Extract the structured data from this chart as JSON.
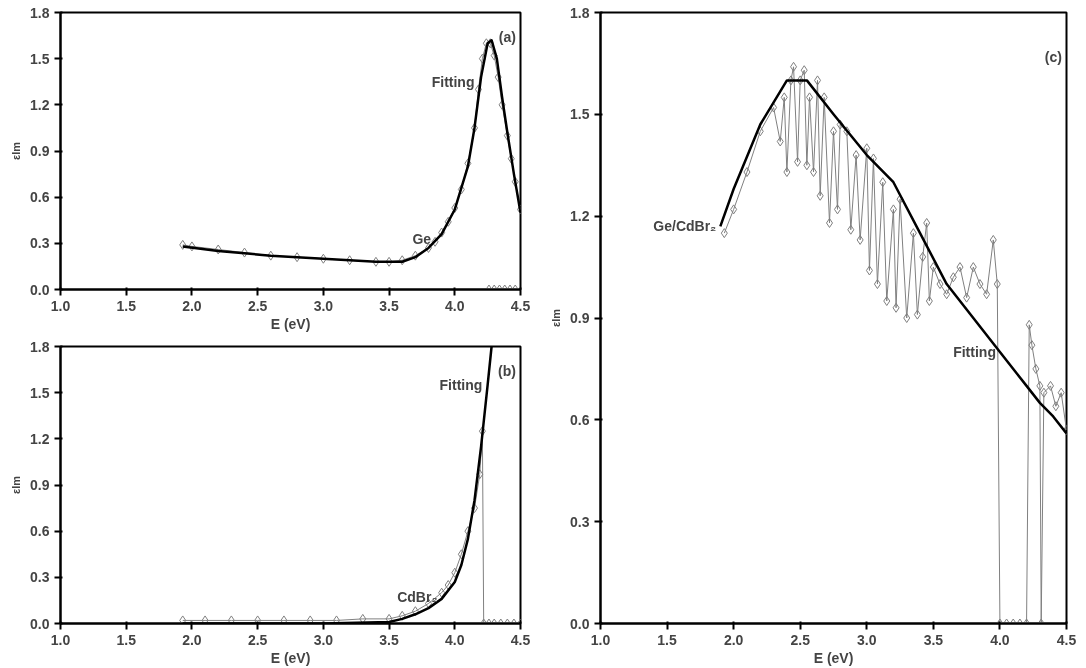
{
  "chart_data": [
    {
      "type": "line",
      "xlabel": "E (eV)",
      "ylabel": "εIm",
      "xlim": [
        1.0,
        4.5
      ],
      "ylim": [
        0.0,
        1.8
      ],
      "xticks": [
        {
          "value": 1.0,
          "label": "1.0"
        },
        {
          "value": 1.5,
          "label": "1.5"
        },
        {
          "value": 2.0,
          "label": "2.0"
        },
        {
          "value": 2.5,
          "label": "2.5"
        },
        {
          "value": 3.0,
          "label": "3.0"
        },
        {
          "value": 3.5,
          "label": "3.5"
        },
        {
          "value": 4.0,
          "label": "4.0"
        },
        {
          "value": 4.5,
          "label": "4.5"
        }
      ],
      "yticks": [
        {
          "value": 0.0,
          "label": "0.0"
        },
        {
          "value": 0.3,
          "label": "0.3"
        },
        {
          "value": 0.6,
          "label": "0.6"
        },
        {
          "value": 0.9,
          "label": "0.9"
        },
        {
          "value": 1.2,
          "label": "1.2"
        },
        {
          "value": 1.5,
          "label": "1.5"
        },
        {
          "value": 1.8,
          "label": "1.8"
        }
      ],
      "grid": false,
      "series": [
        {
          "marker": "diamond",
          "color": "#808080",
          "x": [
            1.93,
            2.0,
            2.2,
            2.4,
            2.6,
            2.8,
            3.0,
            3.2,
            3.4,
            3.5,
            3.6,
            3.7,
            3.8,
            3.85,
            3.9,
            3.95,
            4.0,
            4.05,
            4.1,
            4.15,
            4.18,
            4.21,
            4.24,
            4.27,
            4.3,
            4.33,
            4.36,
            4.4,
            4.43,
            4.46,
            4.5
          ],
          "values": [
            0.29,
            0.28,
            0.26,
            0.24,
            0.22,
            0.21,
            0.2,
            0.19,
            0.18,
            0.18,
            0.19,
            0.22,
            0.27,
            0.31,
            0.37,
            0.44,
            0.53,
            0.65,
            0.82,
            1.05,
            1.3,
            1.5,
            1.6,
            1.6,
            1.52,
            1.38,
            1.2,
            1.0,
            0.85,
            0.7,
            0.52
          ]
        },
        {
          "type": "scatter",
          "marker": "diamond",
          "color": "#808080",
          "x": [
            4.26,
            4.3,
            4.34,
            4.38,
            4.42,
            4.46
          ],
          "values": [
            0.0,
            0.0,
            0.0,
            0.0,
            0.0,
            0.0
          ]
        },
        {
          "marker": "none",
          "color": "#000000",
          "x": [
            1.93,
            2.2,
            2.6,
            3.0,
            3.4,
            3.6,
            3.7,
            3.8,
            3.9,
            4.0,
            4.1,
            4.15,
            4.2,
            4.25,
            4.28,
            4.32,
            4.36,
            4.4,
            4.45,
            4.5
          ],
          "values": [
            0.28,
            0.25,
            0.22,
            0.2,
            0.18,
            0.18,
            0.21,
            0.27,
            0.36,
            0.52,
            0.8,
            1.05,
            1.38,
            1.6,
            1.62,
            1.5,
            1.25,
            1.02,
            0.75,
            0.5
          ]
        }
      ],
      "annotations": [
        "(a)",
        {
          "text": "Fitting",
          "x": 4.18,
          "y": 1.35
        },
        {
          "text": "Ge",
          "x": 3.85,
          "y": 0.33
        }
      ]
    },
    {
      "type": "line",
      "xlabel": "E (eV)",
      "ylabel": "εIm",
      "xlim": [
        1.0,
        4.5
      ],
      "ylim": [
        0.0,
        1.8
      ],
      "xticks": [
        {
          "value": 1.0,
          "label": "1.0"
        },
        {
          "value": 1.5,
          "label": "1.5"
        },
        {
          "value": 2.0,
          "label": "2.0"
        },
        {
          "value": 2.5,
          "label": "2.5"
        },
        {
          "value": 3.0,
          "label": "3.0"
        },
        {
          "value": 3.5,
          "label": "3.5"
        },
        {
          "value": 4.0,
          "label": "4.0"
        },
        {
          "value": 4.5,
          "label": "4.5"
        }
      ],
      "yticks": [
        {
          "value": 0.0,
          "label": "0.0"
        },
        {
          "value": 0.3,
          "label": "0.3"
        },
        {
          "value": 0.6,
          "label": "0.6"
        },
        {
          "value": 0.9,
          "label": "0.9"
        },
        {
          "value": 1.2,
          "label": "1.2"
        },
        {
          "value": 1.5,
          "label": "1.5"
        },
        {
          "value": 1.8,
          "label": "1.8"
        }
      ],
      "grid": false,
      "series": [
        {
          "marker": "diamond",
          "color": "#808080",
          "x": [
            1.93,
            2.1,
            2.3,
            2.5,
            2.7,
            2.9,
            3.1,
            3.3,
            3.5,
            3.6,
            3.7,
            3.8,
            3.9,
            3.95,
            4.0,
            4.05,
            4.1,
            4.15,
            4.19,
            4.21,
            4.22,
            4.26,
            4.3,
            4.35,
            4.4,
            4.45,
            4.5
          ],
          "values": [
            0.02,
            0.02,
            0.02,
            0.02,
            0.02,
            0.02,
            0.02,
            0.03,
            0.03,
            0.05,
            0.08,
            0.13,
            0.2,
            0.25,
            0.33,
            0.45,
            0.6,
            0.75,
            0.97,
            1.25,
            0.0,
            0.0,
            0.0,
            0.0,
            0.0,
            0.0,
            0.0
          ]
        },
        {
          "marker": "none",
          "color": "#000000",
          "x": [
            1.93,
            2.5,
            3.0,
            3.5,
            3.6,
            3.7,
            3.8,
            3.9,
            4.0,
            4.05,
            4.1,
            4.15,
            4.2,
            4.25,
            4.28
          ],
          "values": [
            0.0,
            0.0,
            0.0,
            0.01,
            0.03,
            0.06,
            0.1,
            0.16,
            0.27,
            0.38,
            0.55,
            0.8,
            1.15,
            1.55,
            1.8
          ]
        }
      ],
      "annotations": [
        "(b)",
        {
          "text": "Fitting",
          "x": 4.24,
          "y": 1.55
        },
        {
          "text": "CdBr₂",
          "x": 3.9,
          "y": 0.17
        }
      ]
    },
    {
      "type": "line",
      "xlabel": "E (eV)",
      "ylabel": "εIm",
      "xlim": [
        1.0,
        4.5
      ],
      "ylim": [
        0.0,
        1.8
      ],
      "xticks": [
        {
          "value": 1.0,
          "label": "1.0"
        },
        {
          "value": 1.5,
          "label": "1.5"
        },
        {
          "value": 2.0,
          "label": "2.0"
        },
        {
          "value": 2.5,
          "label": "2.5"
        },
        {
          "value": 3.0,
          "label": "3.0"
        },
        {
          "value": 3.5,
          "label": "3.5"
        },
        {
          "value": 4.0,
          "label": "4.0"
        },
        {
          "value": 4.5,
          "label": "4.5"
        }
      ],
      "yticks": [
        {
          "value": 0.0,
          "label": "0.0"
        },
        {
          "value": 0.3,
          "label": "0.3"
        },
        {
          "value": 0.6,
          "label": "0.6"
        },
        {
          "value": 0.9,
          "label": "0.9"
        },
        {
          "value": 1.2,
          "label": "1.2"
        },
        {
          "value": 1.5,
          "label": "1.5"
        },
        {
          "value": 1.8,
          "label": "1.8"
        }
      ],
      "grid": false,
      "series": [
        {
          "marker": "diamond",
          "color": "#808080",
          "x": [
            1.93,
            2.0,
            2.1,
            2.2,
            2.3,
            2.35,
            2.38,
            2.4,
            2.43,
            2.45,
            2.48,
            2.5,
            2.53,
            2.55,
            2.57,
            2.6,
            2.63,
            2.65,
            2.68,
            2.72,
            2.75,
            2.78,
            2.8,
            2.85,
            2.88,
            2.92,
            2.95,
            3.0,
            3.02,
            3.05,
            3.08,
            3.12,
            3.15,
            3.2,
            3.22,
            3.25,
            3.3,
            3.35,
            3.38,
            3.42,
            3.45,
            3.47,
            3.5,
            3.55,
            3.6,
            3.65,
            3.7,
            3.75,
            3.8,
            3.85,
            3.9,
            3.95,
            3.98,
            4.0,
            4.05,
            4.1,
            4.15,
            4.2,
            4.22,
            4.24,
            4.27,
            4.3,
            4.31,
            4.33,
            4.38,
            4.42,
            4.46,
            4.5
          ],
          "values": [
            1.15,
            1.22,
            1.33,
            1.45,
            1.52,
            1.42,
            1.55,
            1.33,
            1.6,
            1.64,
            1.36,
            1.6,
            1.63,
            1.35,
            1.55,
            1.33,
            1.6,
            1.26,
            1.55,
            1.18,
            1.45,
            1.22,
            1.47,
            1.45,
            1.16,
            1.38,
            1.13,
            1.4,
            1.04,
            1.37,
            1.0,
            1.3,
            0.95,
            1.22,
            0.93,
            1.25,
            0.9,
            1.15,
            0.91,
            1.08,
            1.18,
            0.95,
            1.05,
            1.0,
            0.97,
            1.02,
            1.05,
            0.96,
            1.05,
            1.0,
            0.97,
            1.13,
            1.0,
            0.0,
            0.0,
            0.0,
            0.0,
            0.0,
            0.88,
            0.82,
            0.75,
            0.7,
            0.0,
            0.68,
            0.7,
            0.64,
            0.68,
            0.57
          ]
        },
        {
          "marker": "none",
          "color": "#000000",
          "x": [
            1.9,
            2.0,
            2.2,
            2.4,
            2.55,
            2.75,
            3.0,
            3.2,
            3.4,
            3.6,
            3.8,
            4.0,
            4.2,
            4.3,
            4.4,
            4.5
          ],
          "values": [
            1.17,
            1.28,
            1.47,
            1.6,
            1.6,
            1.5,
            1.38,
            1.3,
            1.15,
            1.0,
            0.9,
            0.8,
            0.7,
            0.65,
            0.61,
            0.56
          ]
        }
      ],
      "annotations": [
        "(c)",
        {
          "text": "Fitting",
          "x": 4.0,
          "y": 0.8
        },
        {
          "text": "Ge/CdBr₂",
          "x": 1.9,
          "y": 1.17
        }
      ]
    }
  ]
}
